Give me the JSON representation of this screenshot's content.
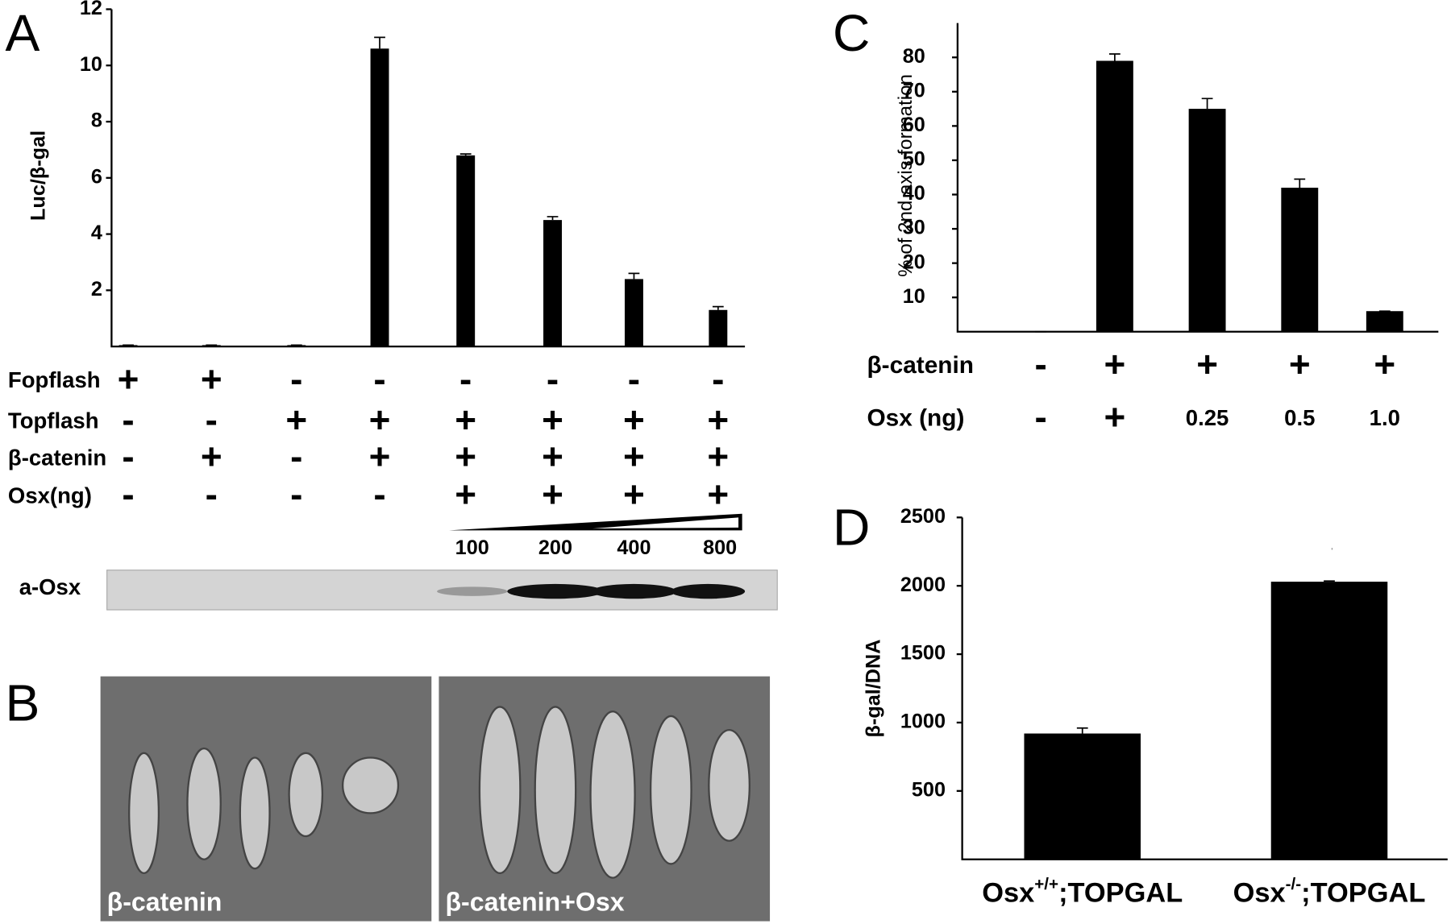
{
  "chart_data": [
    {
      "type": "bar",
      "panel": "A",
      "y_label": "Luc/β-gal",
      "values": [
        0.05,
        0.05,
        0.05,
        10.6,
        6.8,
        4.5,
        2.4,
        1.3
      ],
      "errors": [
        0,
        0,
        0,
        0.4,
        0.05,
        0.12,
        0.2,
        0.12
      ],
      "color": "#000000",
      "ylim": [
        0,
        12
      ],
      "yticks": [
        2,
        4,
        6,
        8,
        10,
        12
      ],
      "conditions": [
        {
          "label": "Fopflash",
          "cells": [
            "+",
            "+",
            "-",
            "-",
            "-",
            "-",
            "-",
            "-"
          ]
        },
        {
          "label": "Topflash",
          "cells": [
            "-",
            "-",
            "+",
            "+",
            "+",
            "+",
            "+",
            "+"
          ]
        },
        {
          "label": "β-catenin",
          "cells": [
            "-",
            "+",
            "-",
            "+",
            "+",
            "+",
            "+",
            "+"
          ]
        },
        {
          "label": "Osx(ng)",
          "cells": [
            "-",
            "-",
            "-",
            "-",
            "+",
            "+",
            "+",
            "+"
          ]
        }
      ],
      "doses": [
        "100",
        "200",
        "400",
        "800"
      ],
      "blot_label": "a-Osx"
    },
    {
      "type": "image",
      "panel": "B",
      "captions": [
        "β-catenin",
        "β-catenin+Osx"
      ]
    },
    {
      "type": "bar",
      "panel": "C",
      "y_label": "% of 2nd axis formation",
      "values": [
        0,
        79,
        65,
        42,
        6
      ],
      "errors": [
        0,
        2,
        3,
        2.5,
        0
      ],
      "color": "#000000",
      "ylim": [
        0,
        90
      ],
      "yticks": [
        10,
        20,
        30,
        40,
        50,
        60,
        70,
        80
      ],
      "conditions": [
        {
          "label": "β-catenin",
          "cells": [
            "-",
            "+",
            "+",
            "+",
            "+"
          ]
        },
        {
          "label": "Osx (ng)",
          "cells": [
            "-",
            "+",
            "0.25",
            "0.5",
            "1.0"
          ]
        }
      ]
    },
    {
      "type": "bar",
      "panel": "D",
      "y_label": "β-gal/DNA",
      "categories": [
        {
          "base": "Osx",
          "sup": "+/+",
          "rest": ";TOPGAL"
        },
        {
          "base": "Osx",
          "sup": "-/-",
          "rest": ";TOPGAL"
        }
      ],
      "values": [
        920,
        2030
      ],
      "errors": [
        40,
        5
      ],
      "color": "#000000",
      "ylim": [
        0,
        2500
      ],
      "yticks": [
        500,
        1000,
        1500,
        2000,
        2500
      ]
    }
  ]
}
